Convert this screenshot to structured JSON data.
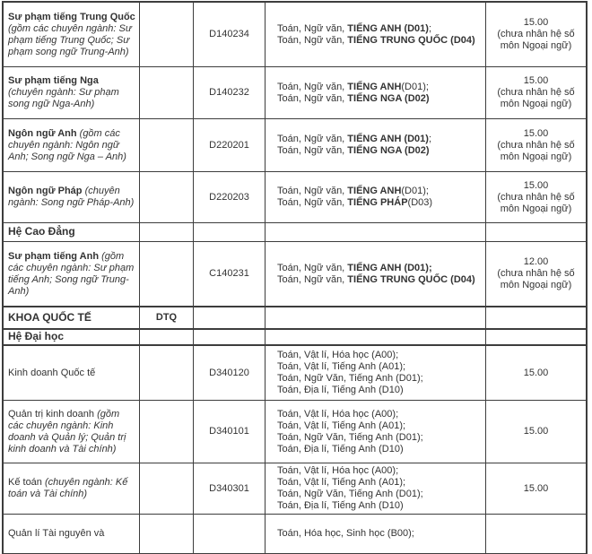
{
  "table": {
    "rows": [
      {
        "kind": "major",
        "name_main": "Sư phạm tiếng Trung Quốc ",
        "name_bold": true,
        "name_note": "(gồm các chuyên ngành: Sư phạm tiếng Trung Quốc; Sư phạm song ngữ Trung-Anh)",
        "group_code": "",
        "code": "D140234",
        "combos": [
          [
            [
              "Toán, Ngữ văn, ",
              0
            ],
            [
              "TIẾNG ANH (D01)",
              1
            ],
            [
              ";",
              0
            ]
          ],
          [
            [
              "Toán, Ngữ văn, ",
              0
            ],
            [
              "TIẾNG TRUNG QUỐC (D04)",
              1
            ]
          ]
        ],
        "score": "15.00",
        "score_note": "(chưa nhân hệ số môn Ngoại ngữ)"
      },
      {
        "kind": "major",
        "name_main": "Sư phạm tiếng Nga ",
        "name_bold": true,
        "name_note": "(chuyên ngành: Sư phạm song ngữ Nga-Anh)",
        "group_code": "",
        "code": "D140232",
        "combos": [
          [
            [
              "Toán, Ngữ văn, ",
              0
            ],
            [
              "TIẾNG ANH",
              1
            ],
            [
              "(D01);",
              0
            ]
          ],
          [
            [
              "Toán, Ngữ văn, ",
              0
            ],
            [
              "TIẾNG NGA (D02)",
              1
            ]
          ]
        ],
        "score": "15.00",
        "score_note": "(chưa nhân hệ số môn Ngoại ngữ)"
      },
      {
        "kind": "major",
        "name_main": "Ngôn ngữ Anh ",
        "name_bold": true,
        "name_note": "(gồm các chuyên ngành: Ngôn ngữ Anh; Song ngữ Nga – Anh)",
        "group_code": "",
        "code": "D220201",
        "combos": [
          [
            [
              "Toán, Ngữ văn, ",
              0
            ],
            [
              "TIẾNG ANH (D01)",
              1
            ],
            [
              ";",
              0
            ]
          ],
          [
            [
              "Toán, Ngữ văn, ",
              0
            ],
            [
              "TIẾNG NGA (D02)",
              1
            ]
          ]
        ],
        "score": "15.00",
        "score_note": "(chưa nhân hệ số môn Ngoại ngữ)"
      },
      {
        "kind": "major",
        "name_main": "Ngôn ngữ Pháp ",
        "name_bold": true,
        "name_note": "(chuyên ngành: Song ngữ Pháp-Anh)",
        "group_code": "",
        "code": "D220203",
        "combos": [
          [
            [
              "Toán, Ngữ văn, ",
              0
            ],
            [
              "TIẾNG ANH",
              1
            ],
            [
              "(D01);",
              0
            ]
          ],
          [
            [
              "Toán, Ngữ văn, ",
              0
            ],
            [
              "TIẾNG PHÁP",
              1
            ],
            [
              "(D03)",
              0
            ]
          ]
        ],
        "score": "15.00",
        "score_note": "(chưa nhân hệ số môn Ngoại ngữ)"
      },
      {
        "kind": "section",
        "name_main": "Hệ Cao Đẳng",
        "group_code": "",
        "code": "",
        "combos": [],
        "score": "",
        "score_note": ""
      },
      {
        "kind": "major",
        "name_main": "Sư phạm tiếng Anh ",
        "name_bold": true,
        "name_note": "(gồm các chuyên ngành: Sư phạm tiếng Anh; Song ngữ Trung-Anh)",
        "group_code": "",
        "code": "C140231",
        "combos": [
          [
            [
              "Toán, Ngữ văn, ",
              0
            ],
            [
              "TIẾNG ANH (D01);",
              1
            ]
          ],
          [
            [
              "Toán, Ngữ văn, ",
              0
            ],
            [
              "TIẾNG TRUNG QUỐC (D04)",
              1
            ]
          ]
        ],
        "score": "12.00",
        "score_note": "(chưa nhân hệ số môn Ngoại ngữ)"
      },
      {
        "kind": "section",
        "name_main": "KHOA QUỐC TẾ",
        "group_code": "DTQ",
        "code": "",
        "combos": [],
        "score": "",
        "score_note": ""
      },
      {
        "kind": "section",
        "name_main": "Hệ Đại học",
        "group_code": "",
        "code": "",
        "combos": [],
        "score": "",
        "score_note": ""
      },
      {
        "kind": "major",
        "name_main": "Kinh doanh Quốc tế",
        "name_bold": false,
        "name_note": "",
        "group_code": "",
        "code": "D340120",
        "combos": [
          [
            [
              "Toán, Vật lí, Hóa học (A00);",
              0
            ]
          ],
          [
            [
              "Toán, Vật lí, Tiếng Anh (A01);",
              0
            ]
          ],
          [
            [
              "Toán, Ngữ Văn, Tiếng Anh (D01);",
              0
            ]
          ],
          [
            [
              "Toán, Địa lí, Tiếng Anh (D10)",
              0
            ]
          ]
        ],
        "score": "15.00",
        "score_note": ""
      },
      {
        "kind": "major",
        "name_main": "Quản trị kinh doanh ",
        "name_bold": false,
        "name_note": "(gồm các chuyên ngành: Kinh doanh và Quản lý; Quản trị kinh doanh và Tài chính)",
        "group_code": "",
        "code": "D340101",
        "combos": [
          [
            [
              "Toán, Vật lí, Hóa học (A00);",
              0
            ]
          ],
          [
            [
              "Toán, Vật lí, Tiếng Anh (A01);",
              0
            ]
          ],
          [
            [
              "Toán, Ngữ Văn, Tiếng Anh (D01);",
              0
            ]
          ],
          [
            [
              "Toán, Địa lí, Tiếng Anh (D10)",
              0
            ]
          ]
        ],
        "score": "15.00",
        "score_note": ""
      },
      {
        "kind": "major",
        "name_main": "Kế toán ",
        "name_bold": false,
        "name_note": "(chuyên ngành: Kế toán và Tài chính)",
        "group_code": "",
        "code": "D340301",
        "combos": [
          [
            [
              "Toán, Vật lí, Hóa học (A00);",
              0
            ]
          ],
          [
            [
              "Toán, Vật lí, Tiếng Anh (A01);",
              0
            ]
          ],
          [
            [
              "Toán, Ngữ Văn, Tiếng Anh (D01);",
              0
            ]
          ],
          [
            [
              "Toán, Địa lí, Tiếng Anh (D10)",
              0
            ]
          ]
        ],
        "score": "15.00",
        "score_note": ""
      },
      {
        "kind": "major",
        "name_main": "Quản lí Tài nguyên và",
        "name_bold": false,
        "name_note": "",
        "group_code": "",
        "code": "",
        "combos": [
          [
            [
              "Toán, Hóa học, Sinh học (B00);",
              0
            ]
          ]
        ],
        "score": "",
        "score_note": ""
      }
    ]
  }
}
